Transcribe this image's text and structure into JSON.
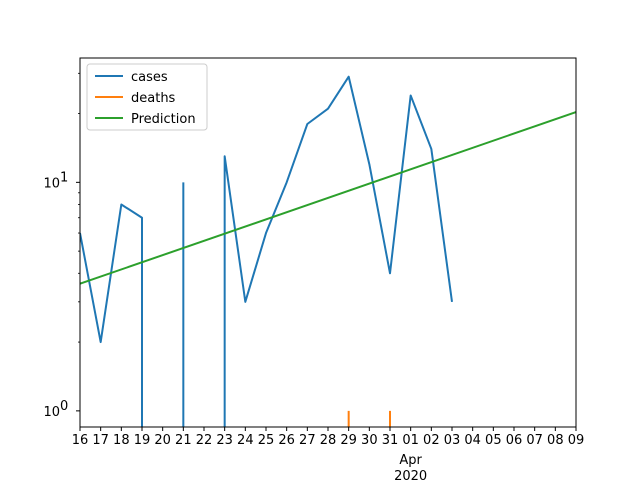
{
  "chart_data": {
    "type": "line",
    "title": "",
    "xlabel": "",
    "ylabel": "",
    "x_axis": {
      "type": "date",
      "range": [
        "2020-03-16",
        "2020-04-09"
      ],
      "ticks": [
        {
          "date": "2020-03-16",
          "label": "16"
        },
        {
          "date": "2020-03-17",
          "label": "17"
        },
        {
          "date": "2020-03-18",
          "label": "18"
        },
        {
          "date": "2020-03-19",
          "label": "19"
        },
        {
          "date": "2020-03-20",
          "label": "20"
        },
        {
          "date": "2020-03-21",
          "label": "21"
        },
        {
          "date": "2020-03-22",
          "label": "22"
        },
        {
          "date": "2020-03-23",
          "label": "23"
        },
        {
          "date": "2020-03-24",
          "label": "24"
        },
        {
          "date": "2020-03-25",
          "label": "25"
        },
        {
          "date": "2020-03-26",
          "label": "26"
        },
        {
          "date": "2020-03-27",
          "label": "27"
        },
        {
          "date": "2020-03-28",
          "label": "28"
        },
        {
          "date": "2020-03-29",
          "label": "29"
        },
        {
          "date": "2020-03-30",
          "label": "30"
        },
        {
          "date": "2020-03-31",
          "label": "31"
        },
        {
          "date": "2020-04-01",
          "label": "01"
        },
        {
          "date": "2020-04-02",
          "label": "02"
        },
        {
          "date": "2020-04-03",
          "label": "03"
        },
        {
          "date": "2020-04-04",
          "label": "04"
        },
        {
          "date": "2020-04-05",
          "label": "05"
        },
        {
          "date": "2020-04-06",
          "label": "06"
        },
        {
          "date": "2020-04-07",
          "label": "07"
        },
        {
          "date": "2020-04-08",
          "label": "08"
        },
        {
          "date": "2020-04-09",
          "label": "09"
        }
      ],
      "secondary_labels": [
        {
          "date": "2020-04-01",
          "lines": [
            "Apr",
            "2020"
          ]
        }
      ]
    },
    "y_axis": {
      "scale": "log",
      "range": [
        0.85,
        35
      ],
      "ticks": [
        {
          "value": 1,
          "label": "10",
          "sup": "0"
        },
        {
          "value": 10,
          "label": "10",
          "sup": "1"
        }
      ]
    },
    "grid": false,
    "legend": {
      "position": "top-left"
    },
    "series": [
      {
        "name": "cases",
        "color": "#1f77b4",
        "points": [
          {
            "x": "2020-03-16",
            "y": 6
          },
          {
            "x": "2020-03-17",
            "y": 2
          },
          {
            "x": "2020-03-18",
            "y": 8
          },
          {
            "x": "2020-03-19",
            "y": 7
          },
          {
            "x": "2020-03-19",
            "y": 0.85,
            "break_after": true
          },
          {
            "x": "2020-03-21",
            "y": 0.85
          },
          {
            "x": "2020-03-21",
            "y": 10,
            "break_after": true
          },
          {
            "x": "2020-03-23",
            "y": 0.85
          },
          {
            "x": "2020-03-23",
            "y": 13
          },
          {
            "x": "2020-03-24",
            "y": 3
          },
          {
            "x": "2020-03-25",
            "y": 6
          },
          {
            "x": "2020-03-26",
            "y": 10
          },
          {
            "x": "2020-03-27",
            "y": 18
          },
          {
            "x": "2020-03-28",
            "y": 21
          },
          {
            "x": "2020-03-29",
            "y": 29
          },
          {
            "x": "2020-03-30",
            "y": 12
          },
          {
            "x": "2020-03-31",
            "y": 4
          },
          {
            "x": "2020-04-01",
            "y": 24
          },
          {
            "x": "2020-04-02",
            "y": 14
          },
          {
            "x": "2020-04-03",
            "y": 3
          }
        ]
      },
      {
        "name": "deaths",
        "color": "#ff7f0e",
        "points": [
          {
            "x": "2020-03-29",
            "y": 0.85
          },
          {
            "x": "2020-03-29",
            "y": 1,
            "break_after": true
          },
          {
            "x": "2020-03-31",
            "y": 0.85
          },
          {
            "x": "2020-03-31",
            "y": 1
          }
        ]
      },
      {
        "name": "Prediction",
        "color": "#2ca02c",
        "points": [
          {
            "x": "2020-03-16",
            "y": 3.6
          },
          {
            "x": "2020-04-09",
            "y": 20.3
          }
        ]
      }
    ]
  }
}
